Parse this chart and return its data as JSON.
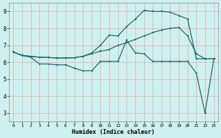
{
  "xlabel": "Humidex (Indice chaleur)",
  "bg_color": "#cef0f0",
  "grid_color": "#e8b0b0",
  "line_color": "#1a6b6b",
  "xlim": [
    -0.5,
    23.5
  ],
  "ylim": [
    2.5,
    9.5
  ],
  "yticks": [
    3,
    4,
    5,
    6,
    7,
    8,
    9
  ],
  "xticks": [
    0,
    1,
    2,
    3,
    4,
    5,
    6,
    7,
    8,
    9,
    10,
    11,
    12,
    13,
    14,
    15,
    16,
    17,
    18,
    19,
    20,
    21,
    22,
    23
  ],
  "line1_x": [
    0,
    1,
    2,
    3,
    4,
    5,
    6,
    7,
    8,
    9,
    10,
    11,
    12,
    13,
    14,
    15,
    16,
    17,
    18,
    19,
    20,
    21,
    22,
    23
  ],
  "line1_y": [
    6.6,
    6.4,
    6.3,
    5.9,
    5.9,
    5.85,
    5.85,
    5.65,
    5.5,
    5.5,
    6.05,
    6.05,
    6.05,
    7.3,
    6.55,
    6.5,
    6.05,
    6.05,
    6.05,
    6.05,
    6.05,
    5.35,
    3.0,
    6.2
  ],
  "line2_x": [
    0,
    1,
    2,
    3,
    4,
    5,
    6,
    7,
    8,
    9,
    10,
    11,
    12,
    13,
    14,
    15,
    16,
    17,
    18,
    19,
    20,
    21,
    22,
    23
  ],
  "line2_y": [
    6.6,
    6.4,
    6.35,
    6.3,
    6.28,
    6.25,
    6.25,
    6.27,
    6.35,
    6.5,
    6.65,
    6.75,
    7.0,
    7.15,
    7.35,
    7.55,
    7.75,
    7.9,
    8.0,
    8.05,
    7.55,
    6.5,
    6.2,
    6.2
  ],
  "line3_x": [
    0,
    1,
    2,
    3,
    4,
    5,
    6,
    7,
    8,
    9,
    10,
    11,
    12,
    13,
    14,
    15,
    16,
    17,
    18,
    19,
    20,
    21,
    22,
    23
  ],
  "line3_y": [
    6.6,
    6.4,
    6.35,
    6.3,
    6.28,
    6.25,
    6.25,
    6.27,
    6.35,
    6.55,
    7.0,
    7.6,
    7.55,
    8.1,
    8.55,
    9.05,
    9.0,
    9.0,
    8.95,
    8.75,
    8.55,
    6.2,
    6.2,
    6.2
  ]
}
